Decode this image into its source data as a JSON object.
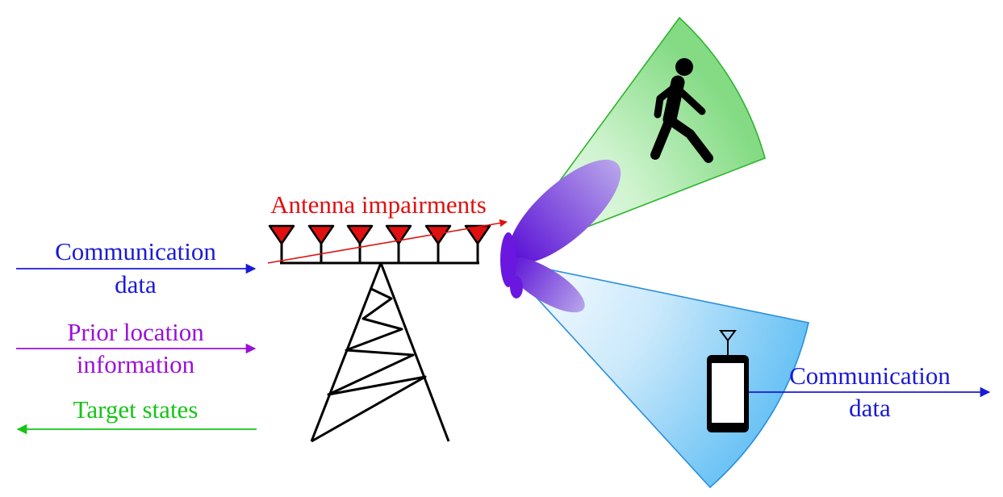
{
  "labels": {
    "antenna_impairments": "Antenna impairments",
    "comm_data_in_line1": "Communication",
    "comm_data_in_line2": "data",
    "prior_location_line1": "Prior location",
    "prior_location_line2": "information",
    "target_states": "Target states",
    "comm_data_out_line1": "Communication",
    "comm_data_out_line2": "data"
  },
  "colors": {
    "communication": "#1a1ad6",
    "prior_location": "#9b10d8",
    "target_states": "#16c416",
    "antenna_impairments": "#e01010",
    "antenna_element": "#e01010",
    "beam": "#7a2ae6",
    "target_sector": "#4fcf4f",
    "user_sector": "#3aa9ee",
    "structure": "#000000"
  },
  "icons": {
    "pedestrian": "walking-person-icon",
    "user_device": "smartphone-icon",
    "base_station": "lattice-tower-icon"
  },
  "antenna_elements": 6
}
